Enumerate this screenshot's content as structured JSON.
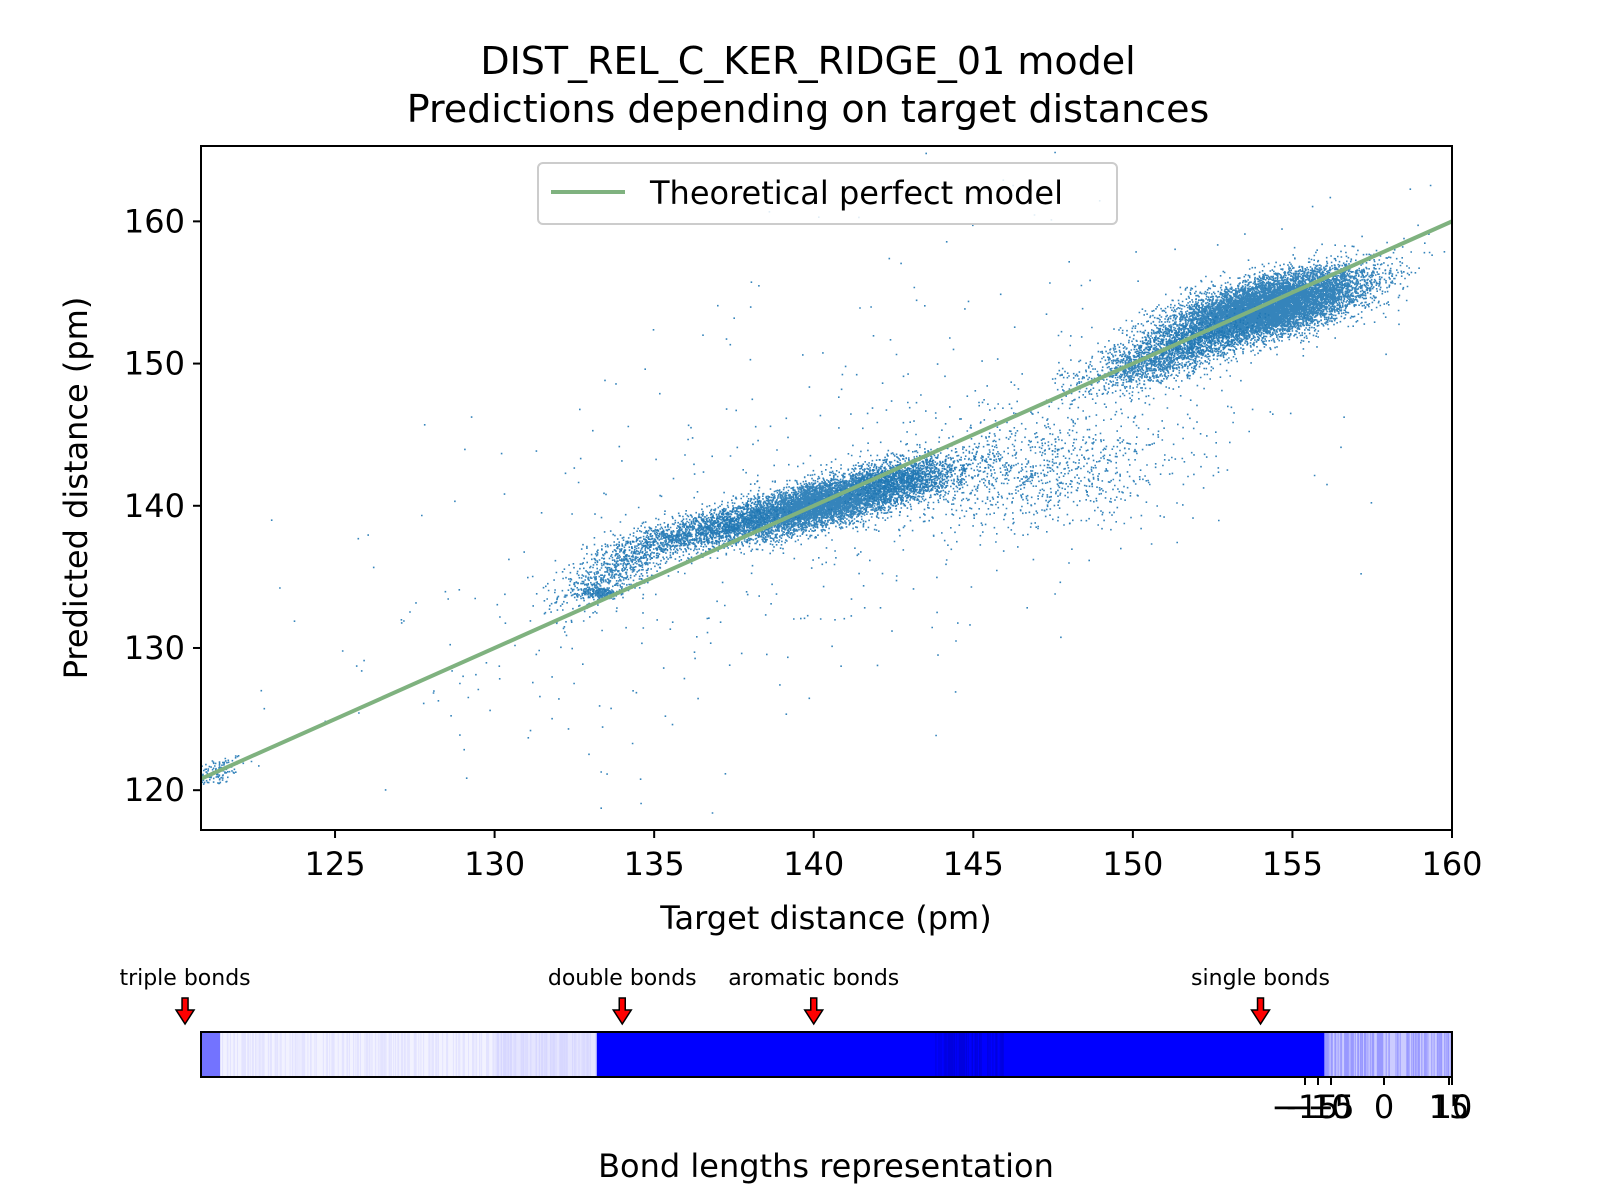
{
  "chart_data": [
    {
      "type": "scatter",
      "title": "DIST_REL_C_KER_RIDGE_01 model",
      "subtitle": "Predictions depending on target distances",
      "xlabel": "Target distance (pm)",
      "ylabel": "Predicted distance (pm)",
      "xlim": [
        120.8,
        160
      ],
      "ylim": [
        117.2,
        165.3
      ],
      "x_ticks": [
        "125",
        "130",
        "135",
        "140",
        "145",
        "150",
        "155",
        "160"
      ],
      "y_ticks": [
        "120",
        "130",
        "140",
        "150",
        "160"
      ],
      "grid": false,
      "legend_position": "top-center",
      "colors": {
        "points": "#1f77b4",
        "reference_line": "#7fb27f"
      },
      "series": [
        {
          "name": "Theoretical perfect model",
          "kind": "line",
          "x": [
            120.8,
            160
          ],
          "y": [
            120.8,
            160
          ]
        },
        {
          "kind": "scatter-clusters",
          "clusters": [
            {
              "x_mean": 121.2,
              "x_sd": 0.5,
              "y_mean": 121.3,
              "y_sd": 0.5,
              "slope": 0.6,
              "weight": 0.006
            },
            {
              "x_mean": 133.8,
              "x_sd": 0.9,
              "y_mean": 135.6,
              "y_sd": 1.0,
              "slope": 1.0,
              "weight": 0.03
            },
            {
              "x_mean": 133.3,
              "x_sd": 0.3,
              "y_mean": 133.9,
              "y_sd": 0.2,
              "slope": 0.0,
              "weight": 0.01
            },
            {
              "x_mean": 140.2,
              "x_sd": 1.7,
              "y_mean": 140.2,
              "y_sd": 0.8,
              "slope": 0.55,
              "weight": 0.3
            },
            {
              "x_mean": 136.5,
              "x_sd": 1.2,
              "y_mean": 138.3,
              "y_sd": 0.6,
              "slope": 0.5,
              "weight": 0.05
            },
            {
              "x_mean": 143.0,
              "x_sd": 1.0,
              "y_mean": 142.0,
              "y_sd": 0.8,
              "slope": 0.3,
              "weight": 0.04
            },
            {
              "x_mean": 147.0,
              "x_sd": 2.2,
              "y_mean": 142.5,
              "y_sd": 2.0,
              "slope": 0.3,
              "weight": 0.04
            },
            {
              "x_mean": 151.0,
              "x_sd": 1.3,
              "y_mean": 150.6,
              "y_sd": 0.9,
              "slope": 0.7,
              "weight": 0.08
            },
            {
              "x_mean": 154.2,
              "x_sd": 1.5,
              "y_mean": 154.0,
              "y_sd": 1.0,
              "slope": 0.55,
              "weight": 0.42
            },
            {
              "x_mean": 141.0,
              "x_sd": 8.0,
              "y_mean": 141.0,
              "y_sd": 8.0,
              "slope": 0.8,
              "weight": 0.025
            }
          ]
        }
      ]
    },
    {
      "type": "heatmap",
      "xlabel": "Bond lengths representation",
      "color": "#0000ff",
      "x_ticks": [
        "−15",
        "−10",
        "−5",
        "0",
        "15",
        "10"
      ],
      "annotations": [
        {
          "label": "triple bonds",
          "x": 120.3
        },
        {
          "label": "double bonds",
          "x": 134.0
        },
        {
          "label": "aromatic bonds",
          "x": 140.0
        },
        {
          "label": "single bonds",
          "x": 154.0
        }
      ],
      "density_segments": [
        {
          "from": 120.8,
          "to": 121.4,
          "intensity": 0.55
        },
        {
          "from": 121.4,
          "to": 130.0,
          "intensity": 0.05
        },
        {
          "from": 130.0,
          "to": 133.2,
          "intensity": 0.1
        },
        {
          "from": 133.2,
          "to": 156.0,
          "intensity": 1.0
        },
        {
          "from": 156.0,
          "to": 160.0,
          "intensity": 0.2
        }
      ]
    }
  ]
}
